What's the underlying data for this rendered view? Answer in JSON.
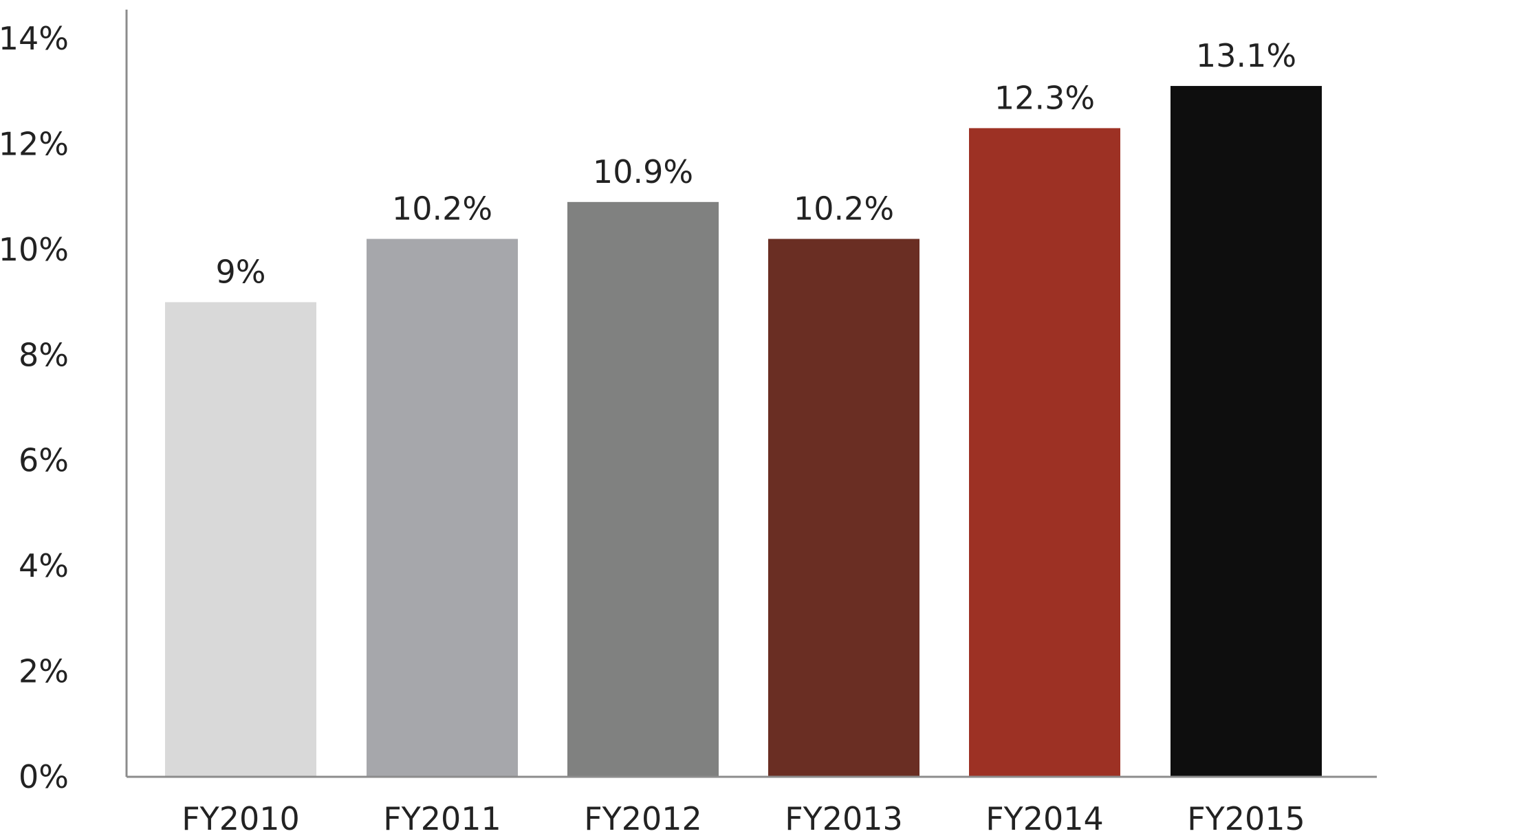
{
  "chart_data": {
    "type": "bar",
    "title": "",
    "xlabel": "",
    "ylabel": "",
    "categories": [
      "FY2010",
      "FY2011",
      "FY2012",
      "FY2013",
      "FY2014",
      "FY2015"
    ],
    "values": [
      9,
      10.2,
      10.9,
      10.2,
      12.3,
      13.1
    ],
    "data_labels": [
      "9%",
      "10.2%",
      "10.9%",
      "10.2%",
      "12.3%",
      "13.1%"
    ],
    "bar_colors": [
      "#d9d9d9",
      "#a6a7ab",
      "#808180",
      "#6a2e23",
      "#9d3124",
      "#0e0e0e"
    ],
    "ylim": [
      0,
      14
    ],
    "yticks": [
      0,
      2,
      4,
      6,
      8,
      10,
      12,
      14
    ],
    "ytick_labels": [
      "0%",
      "2%",
      "4%",
      "6%",
      "8%",
      "10%",
      "12%",
      "14%"
    ],
    "grid": false,
    "legend": "none",
    "axis_color": "#8c8c8c"
  }
}
